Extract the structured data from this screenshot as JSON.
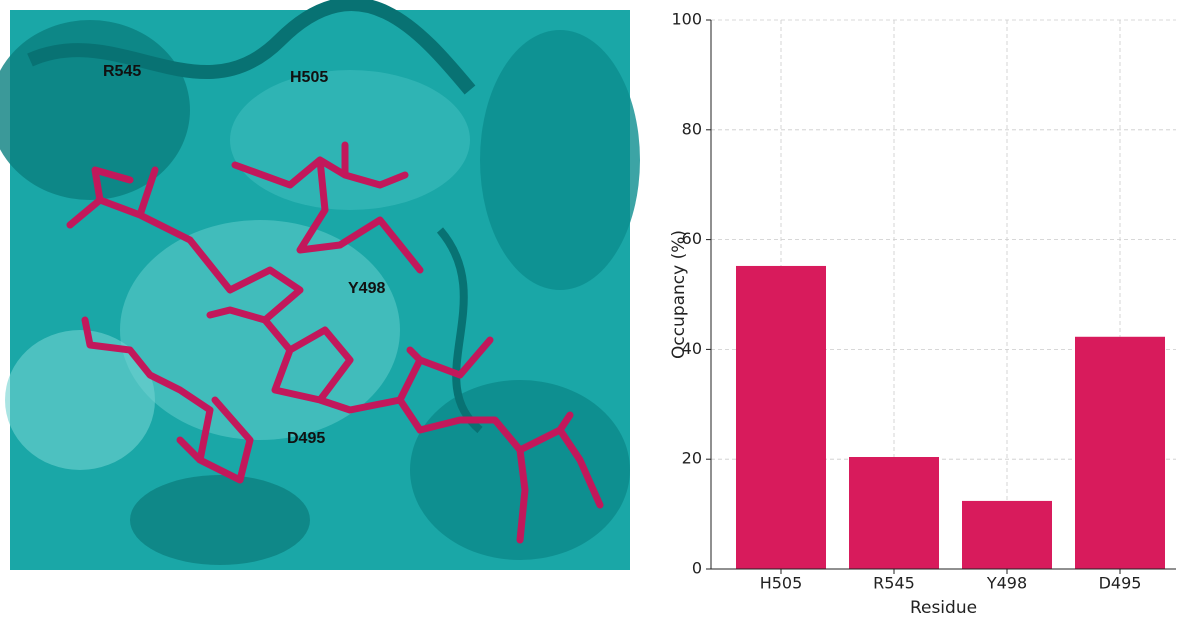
{
  "structure_image": {
    "labels": [
      "R545",
      "H505",
      "Y498",
      "D495"
    ]
  },
  "chart_data": {
    "type": "bar",
    "categories": [
      "H505",
      "R545",
      "Y498",
      "D495"
    ],
    "values": [
      55.2,
      20.4,
      12.4,
      42.3
    ],
    "color": "#d81b5c",
    "xlabel": "Residue",
    "ylabel": "Occupancy (%)",
    "ylim": [
      0,
      100
    ],
    "yticks": [
      0,
      20,
      40,
      60,
      80,
      100
    ],
    "grid": true
  }
}
